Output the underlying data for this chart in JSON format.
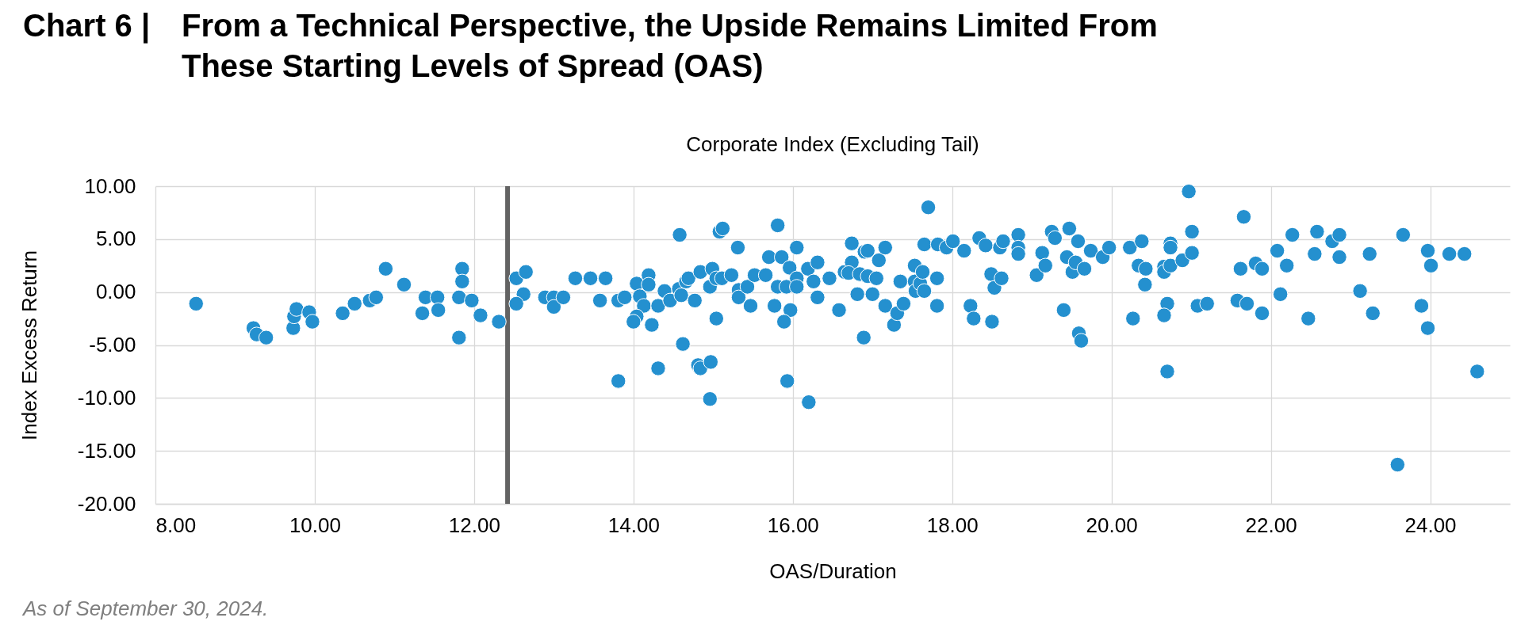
{
  "chart_data": {
    "type": "scatter",
    "title": "Chart 6 | From a Technical Perspective, the Upside Remains Limited From These Starting Levels of Spread (OAS)",
    "subtitle": "Corporate Index (Excluding Tail)",
    "xlabel": "OAS/Duration",
    "ylabel": "Index Excess Return",
    "annotations": [
      "As of September 30, 2024."
    ],
    "x": [
      8.51,
      9.23,
      9.27,
      9.39,
      9.73,
      9.74,
      9.77,
      9.93,
      9.97,
      10.35,
      10.5,
      10.69,
      10.77,
      10.89,
      11.12,
      11.35,
      11.39,
      11.54,
      11.55,
      11.81,
      11.85,
      11.85,
      11.81,
      11.97,
      12.08,
      12.31,
      12.53,
      12.65,
      12.62,
      12.53,
      12.89,
      13.0,
      13.0,
      13.12,
      13.27,
      13.46,
      13.58,
      13.65,
      13.81,
      13.89,
      13.81,
      14.04,
      14.19,
      14.19,
      14.08,
      14.13,
      14.04,
      14.0,
      14.23,
      14.31,
      14.31,
      14.39,
      14.46,
      14.57,
      14.6,
      14.58,
      14.62,
      14.66,
      14.69,
      14.77,
      14.81,
      14.84,
      14.97,
      14.96,
      14.84,
      14.99,
      14.96,
      15.04,
      15.04,
      15.08,
      15.12,
      15.11,
      15.23,
      15.31,
      15.32,
      15.32,
      15.43,
      15.47,
      15.52,
      15.66,
      15.7,
      15.81,
      15.86,
      15.81,
      15.77,
      15.92,
      15.96,
      15.97,
      15.89,
      15.93,
      16.05,
      16.05,
      16.05,
      16.2,
      16.19,
      16.31,
      16.26,
      16.31,
      16.46,
      16.58,
      16.74,
      16.65,
      16.74,
      16.7,
      16.81,
      16.84,
      16.89,
      16.9,
      16.94,
      16.94,
      17.0,
      17.05,
      17.08,
      17.16,
      17.16,
      17.27,
      17.31,
      17.35,
      17.39,
      17.53,
      17.53,
      17.54,
      17.6,
      17.63,
      17.65,
      17.65,
      17.7,
      17.81,
      17.81,
      17.82,
      17.93,
      18.01,
      18.15,
      18.23,
      18.27,
      18.34,
      18.42,
      18.49,
      18.5,
      18.53,
      18.62,
      18.6,
      18.64,
      18.83,
      18.83,
      18.83,
      19.06,
      19.13,
      19.17,
      19.25,
      19.29,
      19.4,
      19.44,
      19.47,
      19.51,
      19.55,
      19.58,
      19.59,
      19.62,
      19.66,
      19.74,
      19.89,
      19.97,
      20.23,
      20.27,
      20.34,
      20.38,
      20.42,
      20.43,
      20.66,
      20.66,
      20.74,
      20.74,
      20.74,
      20.7,
      20.66,
      20.7,
      20.89,
      20.97,
      21.01,
      21.01,
      21.08,
      21.2,
      21.58,
      21.62,
      21.66,
      21.7,
      21.81,
      21.89,
      21.89,
      22.08,
      22.12,
      22.2,
      22.27,
      22.47,
      22.55,
      22.58,
      22.77,
      22.86,
      22.86,
      23.12,
      23.24,
      23.28,
      23.59,
      23.66,
      23.89,
      23.97,
      24.01,
      23.97,
      24.24,
      24.43,
      24.59
    ],
    "series": [
      {
        "color": "#2490cf",
        "values": [
          -1.1,
          -3.4,
          -4.0,
          -4.3,
          -3.4,
          -2.3,
          -1.6,
          -1.9,
          -2.8,
          -2.0,
          -1.1,
          -0.8,
          -0.5,
          2.2,
          0.7,
          -2.0,
          -0.5,
          -0.5,
          -1.7,
          -0.5,
          2.2,
          1.0,
          -4.3,
          -0.8,
          -2.2,
          -2.8,
          1.3,
          1.9,
          -0.2,
          -1.1,
          -0.5,
          -0.5,
          -1.4,
          -0.5,
          1.3,
          1.3,
          -0.8,
          1.3,
          -0.8,
          -0.5,
          -8.4,
          0.8,
          1.6,
          0.7,
          -0.4,
          -1.3,
          -2.3,
          -2.8,
          -3.1,
          -7.2,
          -1.3,
          0.1,
          -0.8,
          0.3,
          -0.3,
          5.4,
          -4.9,
          1.0,
          1.3,
          -0.8,
          -6.9,
          -7.2,
          -6.6,
          -10.1,
          1.9,
          2.2,
          0.5,
          -2.5,
          1.3,
          5.7,
          6.0,
          1.3,
          1.6,
          4.2,
          0.2,
          -0.5,
          0.5,
          -1.3,
          1.6,
          1.6,
          3.3,
          6.3,
          3.3,
          0.5,
          -1.3,
          0.5,
          2.3,
          -1.7,
          -2.8,
          -8.4,
          4.2,
          1.3,
          0.5,
          -10.4,
          2.2,
          2.8,
          1.0,
          -0.5,
          1.3,
          -1.7,
          4.6,
          1.9,
          2.8,
          1.8,
          -0.2,
          1.7,
          -4.3,
          3.8,
          3.9,
          1.5,
          -0.2,
          1.3,
          3.0,
          4.2,
          -1.3,
          -3.1,
          -2.0,
          1.0,
          -1.1,
          2.5,
          1.0,
          0.1,
          0.8,
          1.9,
          0.1,
          4.5,
          8.0,
          1.3,
          -1.3,
          4.5,
          4.2,
          4.8,
          3.9,
          -1.3,
          -2.5,
          5.1,
          4.4,
          1.7,
          -2.8,
          0.4,
          1.3,
          4.2,
          4.8,
          5.4,
          4.2,
          3.6,
          1.6,
          3.7,
          2.5,
          5.7,
          5.1,
          -1.7,
          3.3,
          6.0,
          1.9,
          2.8,
          4.8,
          -3.9,
          -4.6,
          2.2,
          3.9,
          3.3,
          4.2,
          4.2,
          -2.5,
          2.5,
          4.8,
          0.7,
          2.2,
          2.4,
          1.9,
          4.6,
          4.2,
          2.5,
          -1.1,
          -2.2,
          -7.5,
          3.0,
          9.5,
          5.7,
          3.7,
          -1.3,
          -1.1,
          -0.8,
          2.2,
          7.1,
          -1.1,
          2.7,
          2.2,
          -2.0,
          3.9,
          -0.2,
          2.5,
          5.4,
          -2.5,
          3.6,
          5.7,
          4.8,
          5.4,
          3.3,
          0.1,
          3.6,
          -2.0,
          -16.3,
          5.4,
          -1.3,
          3.9,
          2.5,
          -3.4,
          3.6,
          3.6,
          -7.5
        ]
      }
    ],
    "xlim": [
      8,
      25
    ],
    "xticks": [
      {
        "value": 8,
        "label": "8.00"
      },
      {
        "value": 10,
        "label": "10.00"
      },
      {
        "value": 12,
        "label": "12.00"
      },
      {
        "value": 14,
        "label": "14.00"
      },
      {
        "value": 16,
        "label": "16.00"
      },
      {
        "value": 18,
        "label": "18.00"
      },
      {
        "value": 20,
        "label": "20.00"
      },
      {
        "value": 22,
        "label": "22.00"
      },
      {
        "value": 24,
        "label": "24.00"
      }
    ],
    "ylim": [
      -20,
      10
    ],
    "yticks": [
      {
        "value": -20,
        "label": "-20.00"
      },
      {
        "value": -15,
        "label": "-15.00"
      },
      {
        "value": -10,
        "label": "-10.00"
      },
      {
        "value": -5,
        "label": "-5.00"
      },
      {
        "value": 0,
        "label": "0.00"
      },
      {
        "value": 5,
        "label": "5.00"
      },
      {
        "value": 10,
        "label": "10.00"
      }
    ],
    "grid": true,
    "marker": "circle",
    "ref_lines": [
      {
        "axis": "x",
        "value": 12.42,
        "color": "#636363"
      }
    ]
  }
}
